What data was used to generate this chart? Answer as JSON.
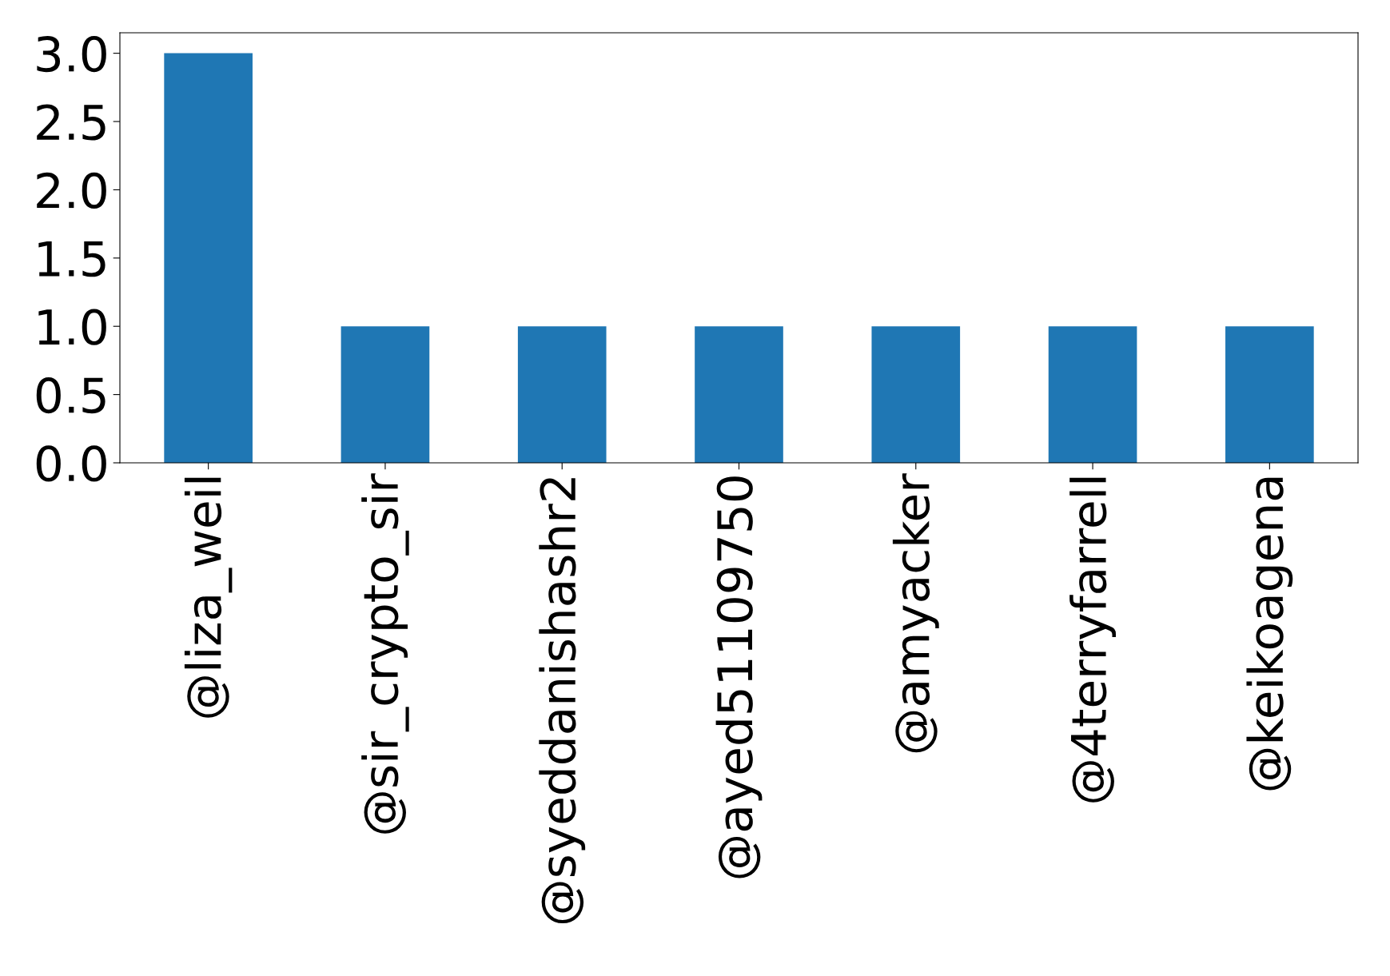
{
  "chart_data": {
    "type": "bar",
    "categories": [
      "@liza_weil",
      "@sir_crypto_sir",
      "@syeddanishashr2",
      "@ayed51109750",
      "@amyacker",
      "@4terryfarrell",
      "@keikoagena"
    ],
    "values": [
      3,
      1,
      1,
      1,
      1,
      1,
      1
    ],
    "color": "#1f77b4",
    "ylim": [
      0,
      3.15
    ],
    "yticks": [
      {
        "value": 0,
        "label": "0.0"
      },
      {
        "value": 0.5,
        "label": "0.5"
      },
      {
        "value": 1,
        "label": "1.0"
      },
      {
        "value": 1.5,
        "label": "1.5"
      },
      {
        "value": 2,
        "label": "2.0"
      },
      {
        "value": 2.5,
        "label": "2.5"
      },
      {
        "value": 3,
        "label": "3.0"
      }
    ],
    "grid": false,
    "legend": false
  }
}
